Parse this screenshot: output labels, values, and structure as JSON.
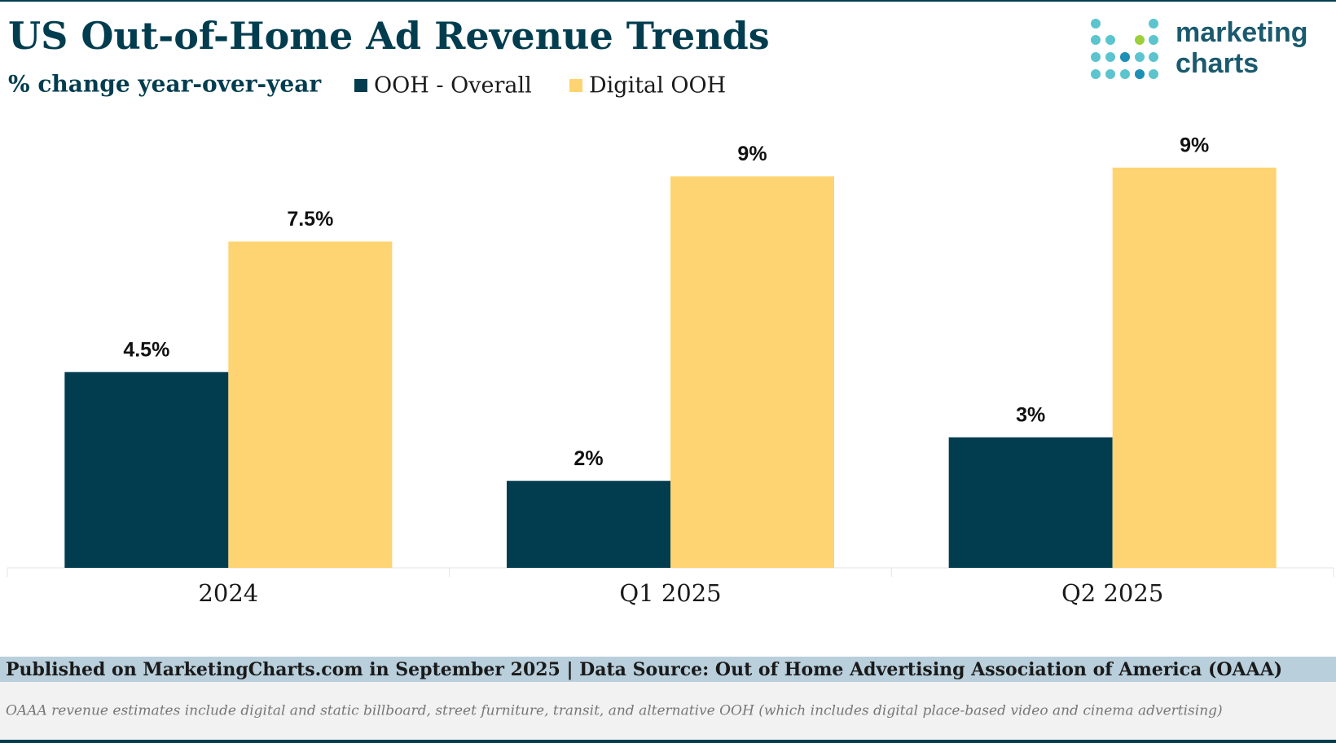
{
  "chart_data": {
    "type": "bar",
    "title": "US Out-of-Home Ad Revenue Trends",
    "subtitle": "% change year-over-year",
    "categories": [
      "2024",
      "Q1 2025",
      "Q2 2025"
    ],
    "series": [
      {
        "name": "OOH - Overall",
        "color": "#023d4f",
        "values": [
          4.5,
          2,
          3
        ],
        "value_labels": [
          "4.5%",
          "2%",
          "3%"
        ]
      },
      {
        "name": "Digital OOH",
        "color": "#fdd471",
        "values": [
          7.5,
          9,
          9.2
        ],
        "value_labels": [
          "7.5%",
          "9%",
          "9%"
        ]
      }
    ],
    "ylim": [
      0,
      10
    ]
  },
  "footer": {
    "source": "Published on MarketingCharts.com in September 2025 | Data Source: Out of Home Advertising Association of America (OAAA)",
    "note": "OAAA revenue estimates include digital and static billboard, street furniture, transit, and alternative OOH (which includes digital place-based video and cinema advertising)"
  },
  "logo": {
    "line1": "marketing",
    "line2": "charts"
  }
}
